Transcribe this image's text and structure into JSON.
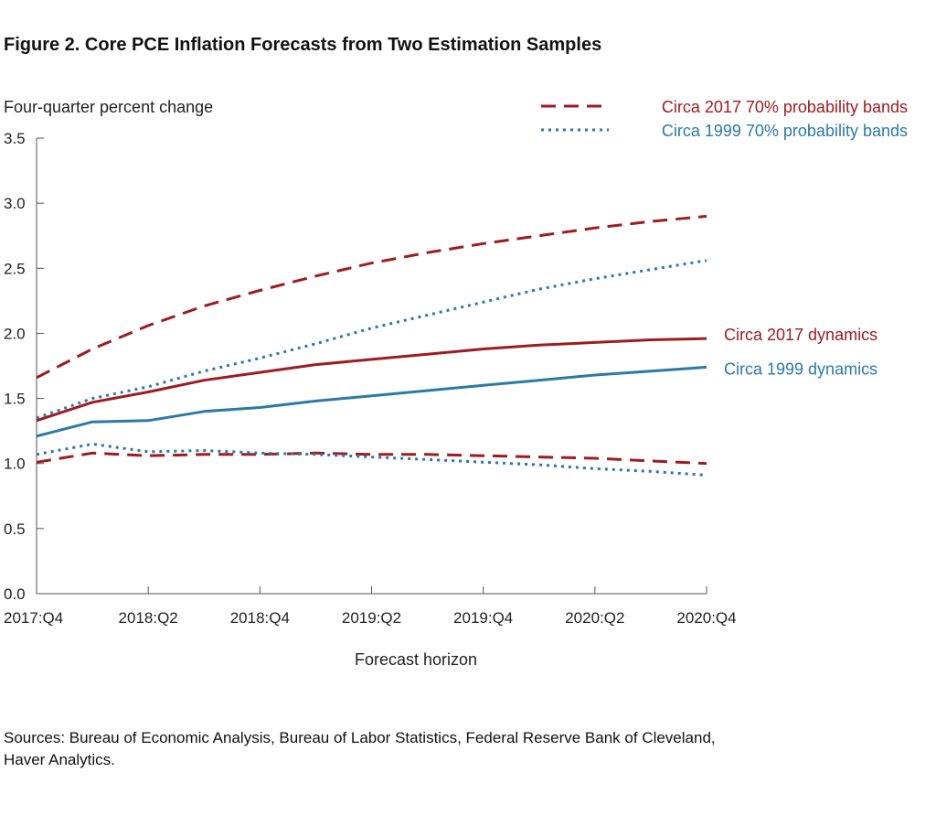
{
  "figure": {
    "title": "Figure 2. Core PCE Inflation Forecasts from Two Estimation Samples",
    "sources_line1": "Sources: Bureau of Economic Analysis, Bureau of Labor Statistics, Federal Reserve Bank of Cleveland,",
    "sources_line2": "Haver Analytics."
  },
  "chart_data": {
    "type": "line",
    "ylabel": "Four-quarter percent change",
    "xlabel": "Forecast horizon",
    "ylim": [
      0,
      3.5
    ],
    "yticks": [
      "0.0",
      "0.5",
      "1.0",
      "1.5",
      "2.0",
      "2.5",
      "3.0",
      "3.5"
    ],
    "x": [
      "2017:Q4",
      "2018:Q1",
      "2018:Q2",
      "2018:Q3",
      "2018:Q4",
      "2019:Q1",
      "2019:Q2",
      "2019:Q3",
      "2019:Q4",
      "2020:Q1",
      "2020:Q2",
      "2020:Q3",
      "2020:Q4"
    ],
    "xtick_labels": [
      "2017:Q4",
      "2018:Q2",
      "2018:Q4",
      "2019:Q2",
      "2019:Q4",
      "2020:Q2",
      "2020:Q4"
    ],
    "grid": false,
    "legend_position": "top-right",
    "colors": {
      "circa_2017": "#9e1b20",
      "circa_1999": "#2a7aa6"
    },
    "series": [
      {
        "name": "Circa 2017 dynamics",
        "style": "solid",
        "color": "#9e1b20",
        "label_position": "right",
        "values": [
          1.33,
          1.47,
          1.55,
          1.64,
          1.7,
          1.76,
          1.8,
          1.84,
          1.88,
          1.91,
          1.93,
          1.95,
          1.96
        ]
      },
      {
        "name": "Circa 1999 dynamics",
        "style": "solid",
        "color": "#2a7aa6",
        "label_position": "right",
        "values": [
          1.21,
          1.32,
          1.33,
          1.4,
          1.43,
          1.48,
          1.52,
          1.56,
          1.6,
          1.64,
          1.68,
          1.71,
          1.74
        ]
      },
      {
        "name": "Circa 2017 70% probability bands",
        "style": "dashed",
        "color": "#9e1b20",
        "label_position": "legend",
        "upper": [
          1.66,
          1.88,
          2.06,
          2.21,
          2.33,
          2.44,
          2.54,
          2.62,
          2.69,
          2.75,
          2.81,
          2.86,
          2.9
        ],
        "lower": [
          1.01,
          1.08,
          1.06,
          1.07,
          1.07,
          1.08,
          1.07,
          1.07,
          1.06,
          1.05,
          1.04,
          1.02,
          1.0
        ]
      },
      {
        "name": "Circa 1999 70% probability bands",
        "style": "dotted",
        "color": "#2a7aa6",
        "label_position": "legend",
        "upper": [
          1.35,
          1.5,
          1.59,
          1.71,
          1.81,
          1.92,
          2.04,
          2.14,
          2.24,
          2.34,
          2.42,
          2.49,
          2.56
        ],
        "lower": [
          1.07,
          1.15,
          1.09,
          1.1,
          1.08,
          1.07,
          1.05,
          1.03,
          1.01,
          0.99,
          0.96,
          0.94,
          0.91
        ]
      }
    ]
  }
}
